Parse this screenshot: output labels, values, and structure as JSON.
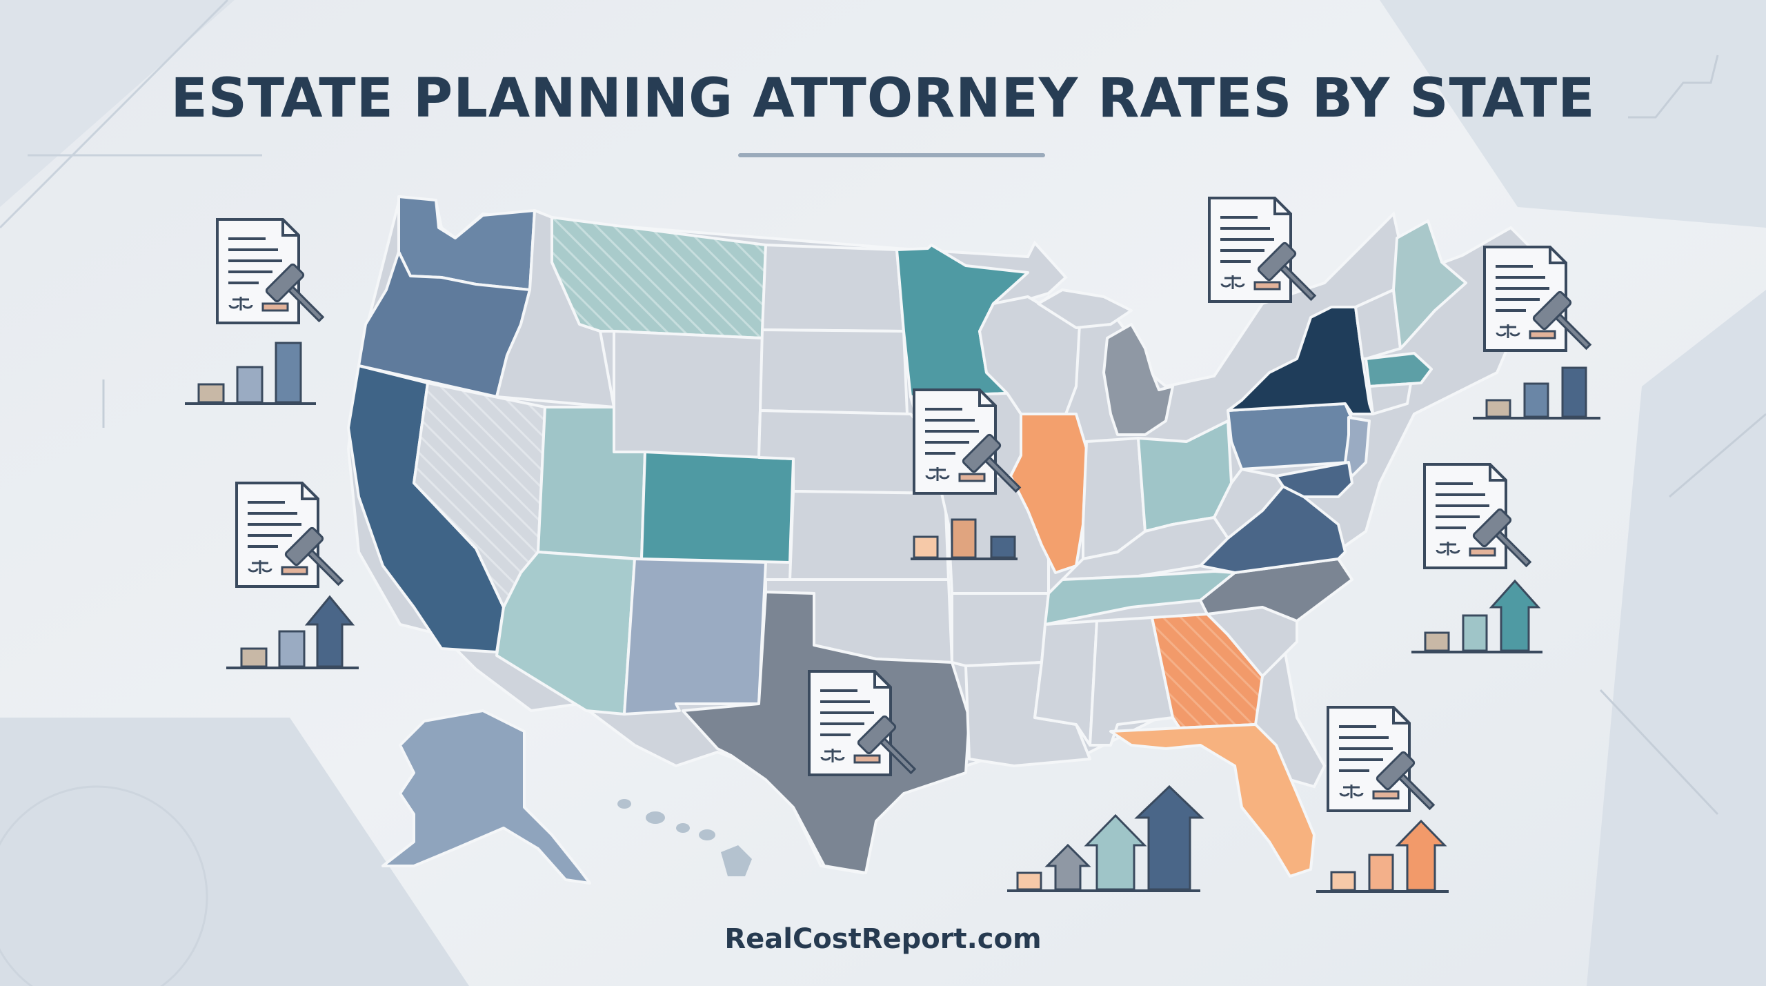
{
  "title": "ESTATE PLANNING ATTORNEY RATES BY STATE",
  "footer": "RealCostReport.com",
  "colors": {
    "background": "#eceff3",
    "title": "#273d54",
    "base_state": "#cfd4dc",
    "navy": "#1f3d5a",
    "slate_blue": "#3f6487",
    "steel_blue": "#6a86a6",
    "teal": "#4f9aa3",
    "light_teal": "#9fc5c8",
    "gray": "#7b8593",
    "orange": "#f3a06d",
    "light_orange": "#f7b27f"
  },
  "highlighted_states": [
    {
      "name": "Washington",
      "shade": "steel_blue"
    },
    {
      "name": "Oregon",
      "shade": "slate_blue"
    },
    {
      "name": "California",
      "shade": "slate_blue"
    },
    {
      "name": "Nevada",
      "shade": "base_hatched"
    },
    {
      "name": "Montana",
      "shade": "light_teal_hatched"
    },
    {
      "name": "Utah",
      "shade": "light_teal"
    },
    {
      "name": "Colorado",
      "shade": "teal"
    },
    {
      "name": "Arizona",
      "shade": "light_teal"
    },
    {
      "name": "New Mexico",
      "shade": "steel_blue"
    },
    {
      "name": "Texas",
      "shade": "gray"
    },
    {
      "name": "Minnesota",
      "shade": "teal"
    },
    {
      "name": "Illinois",
      "shade": "orange"
    },
    {
      "name": "Michigan",
      "shade": "gray"
    },
    {
      "name": "Ohio",
      "shade": "light_teal"
    },
    {
      "name": "Tennessee",
      "shade": "light_teal"
    },
    {
      "name": "Georgia",
      "shade": "orange"
    },
    {
      "name": "Florida",
      "shade": "light_orange"
    },
    {
      "name": "Virginia",
      "shade": "slate_blue"
    },
    {
      "name": "North Carolina",
      "shade": "gray"
    },
    {
      "name": "Pennsylvania",
      "shade": "steel_blue"
    },
    {
      "name": "New York",
      "shade": "navy"
    },
    {
      "name": "Massachusetts",
      "shade": "teal"
    },
    {
      "name": "Maine",
      "shade": "light_teal"
    },
    {
      "name": "Alaska",
      "shade": "steel_blue"
    }
  ],
  "icons": [
    {
      "name": "legal-document-gavel-icon"
    },
    {
      "name": "bar-chart-icon"
    },
    {
      "name": "bar-chart-arrow-icon"
    }
  ]
}
